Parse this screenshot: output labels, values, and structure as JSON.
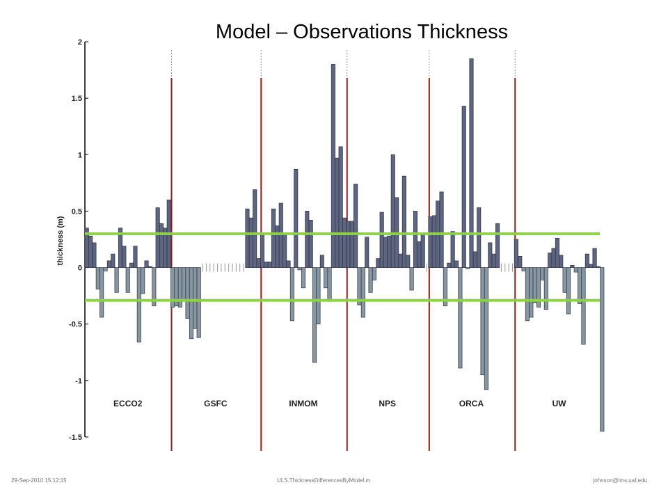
{
  "footer": {
    "left": "29-Sep-2010 15:12:15",
    "center": "ULS.ThicknessDifferencesByModel.m",
    "right": "johnson@ims.uaf.edu"
  },
  "chart_data": {
    "type": "bar",
    "title": "Model – Observations Thickness",
    "ylabel": "thickness (m)",
    "xlabel": "",
    "ylim": [
      -1.5,
      2
    ],
    "yticks": [
      2,
      1.5,
      1,
      0.5,
      0,
      -0.5,
      -1,
      -1.5
    ],
    "reference_lines": [
      0.3,
      -0.29
    ],
    "colors": {
      "positive": "#5e6580",
      "negative": "#8797a2",
      "separator": "#a01818",
      "reference": "#8cd14a",
      "missing": "#9a9a9a"
    },
    "groups": [
      {
        "name": "ECCO2",
        "values": [
          0.35,
          0.28,
          0.22,
          -0.19,
          -0.44,
          -0.03,
          0.06,
          0.12,
          -0.22,
          0.35,
          0.19,
          -0.22,
          0.04,
          0.19,
          -0.66,
          -0.23,
          0.06,
          0.01,
          -0.34,
          0.53,
          0.39,
          0.35,
          0.6
        ]
      },
      {
        "name": "GSFC",
        "values": [
          -0.35,
          -0.34,
          -0.35,
          -0.3,
          -0.45,
          -0.63,
          -0.54,
          -0.62,
          null,
          null,
          null,
          null,
          null,
          null,
          null,
          null,
          null,
          null,
          null,
          null,
          0.52,
          0.44,
          0.69,
          0.08
        ]
      },
      {
        "name": "INMOM",
        "values": [
          0.3,
          0.05,
          0.05,
          0.52,
          0.37,
          0.57,
          0.3,
          0.06,
          -0.47,
          0.87,
          -0.02,
          -0.18,
          0.5,
          0.42,
          -0.84,
          -0.5,
          0.11,
          -0.18,
          -0.3,
          1.8,
          0.97,
          1.07,
          0.44
        ]
      },
      {
        "name": "NPS",
        "values": [
          0.41,
          0.41,
          0.74,
          -0.33,
          -0.44,
          0.27,
          -0.22,
          -0.11,
          0.08,
          0.49,
          0.27,
          0.28,
          1.0,
          0.62,
          0.12,
          0.81,
          0.11,
          -0.2,
          0.5,
          0.23,
          0.29,
          null
        ]
      },
      {
        "name": "ORCA",
        "values": [
          0.45,
          0.46,
          0.59,
          0.67,
          -0.34,
          0.04,
          0.32,
          0.06,
          -0.89,
          1.43,
          -0.01,
          1.85,
          0.14,
          0.53,
          -0.95,
          -1.08,
          0.22,
          0.12,
          0.39,
          null,
          null,
          null,
          null
        ]
      },
      {
        "name": "UW",
        "values": [
          0.25,
          0.1,
          -0.03,
          -0.47,
          -0.44,
          -0.31,
          -0.35,
          -0.11,
          -0.37,
          0.13,
          0.17,
          0.26,
          0.11,
          -0.22,
          -0.41,
          0.02,
          -0.04,
          -0.32,
          -0.68,
          0.12,
          0.03,
          0.17,
          0.01,
          -1.45
        ]
      }
    ]
  }
}
